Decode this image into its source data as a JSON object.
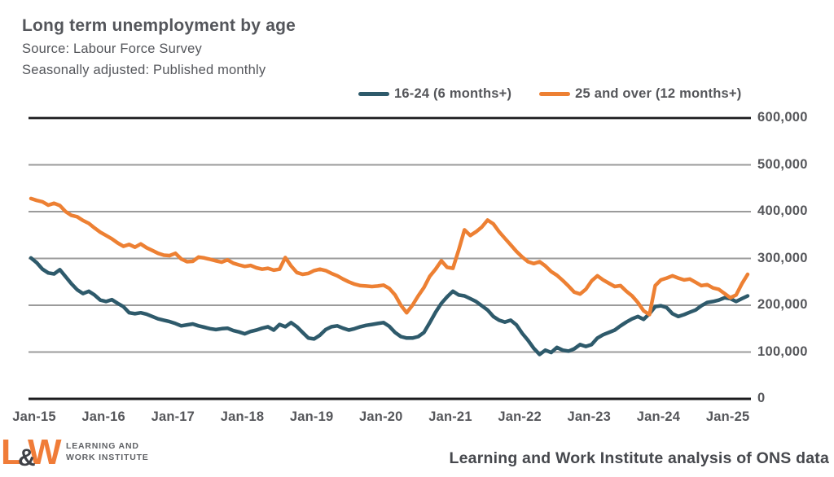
{
  "header": {
    "title": "Long term unemployment by age",
    "source": "Source: Labour Force Survey",
    "adjusted": "Seasonally adjusted: Published monthly"
  },
  "legend": [
    {
      "label": "16-24 (6 months+)",
      "color": "#2e5a6b"
    },
    {
      "label": "25 and over (12 months+)",
      "color": "#ed8033"
    }
  ],
  "footer": {
    "logo_l": "L",
    "logo_amp": "&",
    "logo_w": "W",
    "logo_text_line1": "LEARNING AND",
    "logo_text_line2": "WORK INSTITUTE",
    "attribution": "Learning and Work Institute analysis of ONS data"
  },
  "colors": {
    "series_16_24": "#2e5a6b",
    "series_25_over": "#ed8033",
    "grid_gray": "#9b9b9b",
    "axis_black": "#1c1c1e",
    "text_gray": "#55565a",
    "logo_orange": "#f07c38"
  },
  "chart_data": {
    "type": "line",
    "title": "Long term unemployment by age",
    "xlabel": "",
    "ylabel": "",
    "ylim": [
      0,
      600000
    ],
    "grid": "horizontal",
    "legend_position": "top",
    "x_monthly_start": "Jan-2015",
    "x_monthly_end": "May-2025",
    "x_tick_labels": [
      "Jan-15",
      "Jan-16",
      "Jan-17",
      "Jan-18",
      "Jan-19",
      "Jan-20",
      "Jan-21",
      "Jan-22",
      "Jan-23",
      "Jan-24",
      "Jan-25"
    ],
    "y_tick_labels": [
      "600,000",
      "500,000",
      "400,000",
      "300,000",
      "200,000",
      "100,000",
      "0"
    ],
    "series": [
      {
        "name": "16-24 (6 months+)",
        "color": "#2e5a6b",
        "values": [
          301000,
          291000,
          277000,
          269000,
          267000,
          276000,
          261000,
          246000,
          233000,
          225000,
          230000,
          222000,
          211000,
          208000,
          212000,
          204000,
          197000,
          184000,
          182000,
          184000,
          181000,
          176000,
          171000,
          168000,
          165000,
          161000,
          156000,
          158000,
          160000,
          156000,
          153000,
          150000,
          148000,
          150000,
          151000,
          146000,
          143000,
          139000,
          144000,
          147000,
          151000,
          154000,
          147000,
          159000,
          154000,
          163000,
          154000,
          142000,
          130000,
          128000,
          136000,
          148000,
          154000,
          156000,
          151000,
          147000,
          150000,
          154000,
          157000,
          159000,
          161000,
          163000,
          155000,
          142000,
          133000,
          130000,
          130000,
          133000,
          142000,
          163000,
          185000,
          204000,
          218000,
          230000,
          222000,
          220000,
          214000,
          208000,
          199000,
          190000,
          176000,
          168000,
          164000,
          168000,
          158000,
          140000,
          125000,
          108000,
          95000,
          104000,
          99000,
          110000,
          104000,
          102000,
          107000,
          116000,
          112000,
          116000,
          130000,
          137000,
          142000,
          147000,
          156000,
          164000,
          171000,
          176000,
          170000,
          182000,
          197000,
          199000,
          195000,
          182000,
          176000,
          180000,
          185000,
          190000,
          199000,
          206000,
          208000,
          211000,
          216000,
          214000,
          208000,
          214000,
          220000
        ]
      },
      {
        "name": "25 and over (12 months+)",
        "color": "#ed8033",
        "values": [
          428000,
          424000,
          421000,
          414000,
          418000,
          413000,
          400000,
          392000,
          389000,
          381000,
          375000,
          365000,
          356000,
          349000,
          342000,
          333000,
          326000,
          330000,
          324000,
          331000,
          323000,
          317000,
          311000,
          307000,
          306000,
          311000,
          299000,
          293000,
          294000,
          303000,
          301000,
          298000,
          295000,
          292000,
          297000,
          290000,
          286000,
          283000,
          285000,
          280000,
          277000,
          279000,
          275000,
          277000,
          302000,
          284000,
          270000,
          266000,
          268000,
          274000,
          277000,
          274000,
          268000,
          263000,
          256000,
          250000,
          245000,
          242000,
          241000,
          240000,
          241000,
          243000,
          236000,
          222000,
          200000,
          184000,
          200000,
          220000,
          238000,
          262000,
          277000,
          295000,
          281000,
          279000,
          318000,
          361000,
          349000,
          357000,
          367000,
          382000,
          374000,
          357000,
          343000,
          329000,
          315000,
          303000,
          293000,
          289000,
          293000,
          284000,
          272000,
          264000,
          253000,
          241000,
          228000,
          224000,
          234000,
          252000,
          263000,
          254000,
          247000,
          240000,
          242000,
          230000,
          220000,
          206000,
          188000,
          180000,
          242000,
          254000,
          258000,
          263000,
          258000,
          254000,
          256000,
          249000,
          242000,
          244000,
          237000,
          234000,
          225000,
          216000,
          222000,
          246000,
          266000
        ]
      }
    ]
  }
}
